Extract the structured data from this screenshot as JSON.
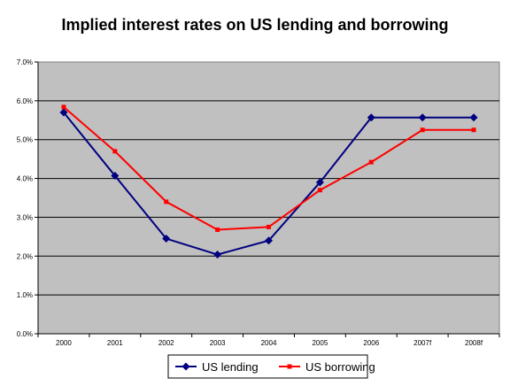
{
  "chart_data": {
    "type": "line",
    "title": "Implied interest rates on US lending and borrowing",
    "xlabel": "",
    "ylabel": "",
    "categories": [
      "2000",
      "2001",
      "2002",
      "2003",
      "2004",
      "2005",
      "2006",
      "2007f",
      "2008f"
    ],
    "ylim": [
      0,
      7
    ],
    "y_ticks": [
      "0.0%",
      "1.0%",
      "2.0%",
      "3.0%",
      "4.0%",
      "5.0%",
      "6.0%",
      "7.0%"
    ],
    "grid": true,
    "legend_position": "bottom",
    "plot_background": "#c0c0c0",
    "series": [
      {
        "name": "US lending",
        "color": "#000080",
        "marker": "diamond",
        "values": [
          5.7,
          4.07,
          2.45,
          2.04,
          2.4,
          3.9,
          5.57,
          5.57,
          5.57
        ]
      },
      {
        "name": "US borrowing",
        "color": "#ff0000",
        "marker": "square",
        "values": [
          5.84,
          4.7,
          3.4,
          2.68,
          2.75,
          3.7,
          4.42,
          5.25,
          5.25
        ]
      }
    ]
  }
}
